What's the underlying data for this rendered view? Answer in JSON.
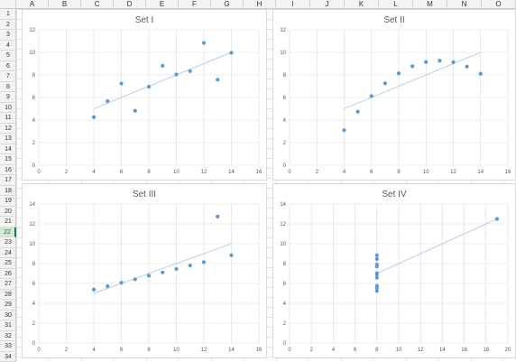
{
  "sheet": {
    "columns": [
      "A",
      "B",
      "C",
      "D",
      "E",
      "F",
      "G",
      "H",
      "I",
      "J",
      "K",
      "L",
      "M",
      "N",
      "O"
    ],
    "rows": [
      "1",
      "2",
      "3",
      "4",
      "5",
      "6",
      "7",
      "8",
      "9",
      "10",
      "11",
      "12",
      "13",
      "14",
      "15",
      "16",
      "17",
      "18",
      "19",
      "20",
      "21",
      "22",
      "23",
      "24",
      "25",
      "26",
      "27",
      "28",
      "29",
      "30",
      "31",
      "32",
      "33",
      "34"
    ],
    "active_row": "22"
  },
  "colors": {
    "point": "#5b9bd5",
    "trendline": "#a9c8e8",
    "gridline": "#d9d9d9",
    "axis_text": "#595959"
  },
  "chart_data": [
    {
      "type": "scatter",
      "title": "Set I",
      "xlim": [
        0,
        16
      ],
      "ylim": [
        0,
        12
      ],
      "xticks": [
        "0",
        "2",
        "4",
        "6",
        "8",
        "10",
        "12",
        "14",
        "16"
      ],
      "yticks": [
        "0",
        "2",
        "4",
        "6",
        "8",
        "10",
        "12"
      ],
      "grid": true,
      "trendline": true,
      "points": [
        [
          10,
          8.04
        ],
        [
          8,
          6.95
        ],
        [
          13,
          7.58
        ],
        [
          9,
          8.81
        ],
        [
          11,
          8.33
        ],
        [
          14,
          9.96
        ],
        [
          6,
          7.24
        ],
        [
          4,
          4.26
        ],
        [
          12,
          10.84
        ],
        [
          7,
          4.82
        ],
        [
          5,
          5.68
        ]
      ]
    },
    {
      "type": "scatter",
      "title": "Set II",
      "xlim": [
        0,
        16
      ],
      "ylim": [
        0,
        12
      ],
      "xticks": [
        "0",
        "2",
        "4",
        "6",
        "8",
        "10",
        "12",
        "14",
        "16"
      ],
      "yticks": [
        "0",
        "2",
        "4",
        "6",
        "8",
        "10",
        "12"
      ],
      "grid": true,
      "trendline": true,
      "points": [
        [
          10,
          9.14
        ],
        [
          8,
          8.14
        ],
        [
          13,
          8.74
        ],
        [
          9,
          8.77
        ],
        [
          11,
          9.26
        ],
        [
          14,
          8.1
        ],
        [
          6,
          6.13
        ],
        [
          4,
          3.1
        ],
        [
          12,
          9.13
        ],
        [
          7,
          7.26
        ],
        [
          5,
          4.74
        ]
      ]
    },
    {
      "type": "scatter",
      "title": "Set III",
      "xlim": [
        0,
        16
      ],
      "ylim": [
        0,
        14
      ],
      "xticks": [
        "0",
        "2",
        "4",
        "6",
        "8",
        "10",
        "12",
        "14",
        "16"
      ],
      "yticks": [
        "0",
        "2",
        "4",
        "6",
        "8",
        "10",
        "12",
        "14"
      ],
      "grid": true,
      "trendline": true,
      "points": [
        [
          10,
          7.46
        ],
        [
          8,
          6.77
        ],
        [
          13,
          12.74
        ],
        [
          9,
          7.11
        ],
        [
          11,
          7.81
        ],
        [
          14,
          8.84
        ],
        [
          6,
          6.08
        ],
        [
          4,
          5.39
        ],
        [
          12,
          8.15
        ],
        [
          7,
          6.42
        ],
        [
          5,
          5.73
        ]
      ]
    },
    {
      "type": "scatter",
      "title": "Set IV",
      "xlim": [
        0,
        20
      ],
      "ylim": [
        0,
        14
      ],
      "xticks": [
        "0",
        "2",
        "4",
        "6",
        "8",
        "10",
        "12",
        "14",
        "16",
        "18",
        "20"
      ],
      "yticks": [
        "0",
        "2",
        "4",
        "6",
        "8",
        "10",
        "12",
        "14"
      ],
      "grid": true,
      "trendline": true,
      "points": [
        [
          8,
          6.58
        ],
        [
          8,
          5.76
        ],
        [
          8,
          7.71
        ],
        [
          8,
          8.84
        ],
        [
          8,
          8.47
        ],
        [
          8,
          7.04
        ],
        [
          8,
          5.25
        ],
        [
          19,
          12.5
        ],
        [
          8,
          5.56
        ],
        [
          8,
          7.91
        ],
        [
          8,
          6.89
        ]
      ]
    }
  ]
}
